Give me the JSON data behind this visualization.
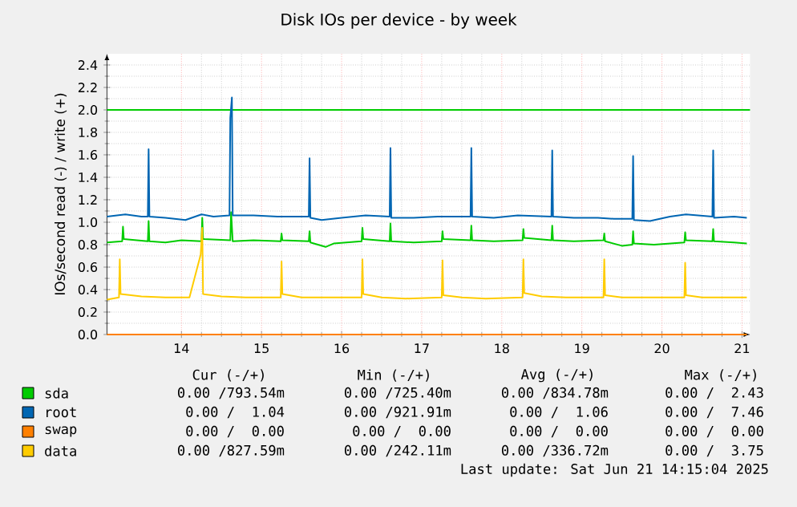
{
  "chart_data": {
    "type": "line",
    "title": "Disk IOs per device - by week",
    "ylabel": "IOs/second read (-) / write (+)",
    "xlim": [
      13.07,
      21.1
    ],
    "xticks": [
      14,
      15,
      16,
      17,
      18,
      19,
      20,
      21
    ],
    "ylim": [
      0,
      2.5
    ],
    "yticks": [
      {
        "value": 0,
        "label": "0.0"
      },
      {
        "value": 0.2,
        "label": "0.2"
      },
      {
        "value": 0.4,
        "label": "0.4"
      },
      {
        "value": 0.6,
        "label": "0.6"
      },
      {
        "value": 0.8,
        "label": "0.8"
      },
      {
        "value": 1,
        "label": "1.0"
      },
      {
        "value": 1.2,
        "label": "1.2"
      },
      {
        "value": 1.4,
        "label": "1.4"
      },
      {
        "value": 1.6,
        "label": "1.6"
      },
      {
        "value": 1.8,
        "label": "1.8"
      },
      {
        "value": 2,
        "label": "2.0"
      },
      {
        "value": 2.2,
        "label": "2.2"
      },
      {
        "value": 2.4,
        "label": "2.4"
      }
    ],
    "grid": true,
    "legend": "bottom",
    "ref_lines": [
      {
        "axis": "y",
        "value": 2.0,
        "color": "#00cc00"
      }
    ],
    "series": [
      {
        "name": "sda",
        "color": "#00cc00",
        "x": [
          13.07,
          13.26,
          13.27,
          13.28,
          13.58,
          13.59,
          13.6,
          13.8,
          14.0,
          14.25,
          14.26,
          14.27,
          14.61,
          14.62,
          14.64,
          14.9,
          15.24,
          15.25,
          15.26,
          15.59,
          15.6,
          15.61,
          15.8,
          15.9,
          16.25,
          16.26,
          16.27,
          16.6,
          16.61,
          16.62,
          16.9,
          17.25,
          17.26,
          17.27,
          17.61,
          17.62,
          17.63,
          17.9,
          18.26,
          18.27,
          18.28,
          18.62,
          18.63,
          18.64,
          18.9,
          19.27,
          19.28,
          19.29,
          19.5,
          19.63,
          19.64,
          19.65,
          19.9,
          20.28,
          20.29,
          20.3,
          20.63,
          20.64,
          20.65,
          20.9,
          21.06
        ],
        "values": [
          0.82,
          0.83,
          0.96,
          0.85,
          0.83,
          1.01,
          0.83,
          0.82,
          0.84,
          0.83,
          1.04,
          0.85,
          0.84,
          1.09,
          0.83,
          0.84,
          0.83,
          0.9,
          0.84,
          0.83,
          0.92,
          0.82,
          0.78,
          0.81,
          0.83,
          0.95,
          0.85,
          0.83,
          0.99,
          0.83,
          0.82,
          0.83,
          0.92,
          0.85,
          0.84,
          0.97,
          0.84,
          0.83,
          0.84,
          0.94,
          0.86,
          0.84,
          0.97,
          0.84,
          0.83,
          0.84,
          0.9,
          0.83,
          0.79,
          0.8,
          0.92,
          0.81,
          0.8,
          0.82,
          0.91,
          0.84,
          0.83,
          0.94,
          0.83,
          0.82,
          0.81
        ]
      },
      {
        "name": "root",
        "color": "#0066b3",
        "x": [
          13.07,
          13.3,
          13.5,
          13.58,
          13.59,
          13.6,
          13.8,
          14.05,
          14.25,
          14.4,
          14.6,
          14.61,
          14.63,
          14.64,
          14.9,
          15.2,
          15.59,
          15.6,
          15.61,
          15.75,
          16.0,
          16.3,
          16.6,
          16.61,
          16.62,
          16.9,
          17.2,
          17.61,
          17.62,
          17.63,
          17.9,
          18.2,
          18.62,
          18.63,
          18.64,
          18.9,
          19.2,
          19.4,
          19.63,
          19.64,
          19.65,
          19.85,
          20.1,
          20.3,
          20.63,
          20.64,
          20.65,
          20.9,
          21.06
        ],
        "values": [
          1.05,
          1.07,
          1.05,
          1.05,
          1.65,
          1.05,
          1.04,
          1.02,
          1.07,
          1.05,
          1.06,
          1.93,
          2.11,
          1.06,
          1.06,
          1.05,
          1.05,
          1.57,
          1.04,
          1.02,
          1.04,
          1.06,
          1.05,
          1.66,
          1.04,
          1.04,
          1.05,
          1.05,
          1.66,
          1.05,
          1.04,
          1.06,
          1.05,
          1.64,
          1.05,
          1.04,
          1.04,
          1.03,
          1.03,
          1.59,
          1.02,
          1.01,
          1.05,
          1.07,
          1.05,
          1.64,
          1.04,
          1.05,
          1.04
        ]
      },
      {
        "name": "swap",
        "color": "#ff8000",
        "x": [
          13.07,
          21.06
        ],
        "values": [
          0,
          0
        ]
      },
      {
        "name": "data",
        "color": "#ffcc00",
        "x": [
          13.07,
          13.22,
          13.23,
          13.24,
          13.5,
          13.8,
          14.1,
          14.24,
          14.26,
          14.27,
          14.5,
          14.8,
          15.24,
          15.25,
          15.26,
          15.5,
          15.8,
          16.25,
          16.26,
          16.27,
          16.5,
          16.8,
          17.25,
          17.26,
          17.27,
          17.5,
          17.8,
          18.26,
          18.27,
          18.28,
          18.5,
          18.8,
          19.27,
          19.28,
          19.29,
          19.5,
          19.8,
          20.28,
          20.29,
          20.3,
          20.5,
          20.8,
          21.06
        ],
        "values": [
          0.31,
          0.33,
          0.67,
          0.36,
          0.34,
          0.33,
          0.33,
          0.71,
          0.95,
          0.36,
          0.34,
          0.33,
          0.33,
          0.65,
          0.36,
          0.33,
          0.33,
          0.33,
          0.67,
          0.36,
          0.33,
          0.32,
          0.33,
          0.66,
          0.35,
          0.33,
          0.32,
          0.33,
          0.67,
          0.37,
          0.34,
          0.33,
          0.33,
          0.67,
          0.35,
          0.33,
          0.33,
          0.33,
          0.64,
          0.35,
          0.33,
          0.33,
          0.33
        ]
      }
    ],
    "annotations": [
      "Cur (-/+)",
      "Min (-/+)",
      "Avg (-/+)",
      "Max (-/+)",
      "0.00 /793.54m",
      "0.00 /725.40m",
      "0.00 /834.78m",
      "0.00 /  2.43",
      "0.00 /  1.04",
      "0.00 /921.91m",
      "0.00 /  1.06",
      "0.00 /  7.46",
      "0.00 /  0.00",
      "0.00 /  0.00",
      "0.00 /  0.00",
      "0.00 /  0.00",
      "0.00 /827.59m",
      "0.00 /242.11m",
      "0.00 /336.72m",
      "0.00 /  3.75",
      "Last update: Sat Jun 21 14:15:04 2025"
    ]
  }
}
